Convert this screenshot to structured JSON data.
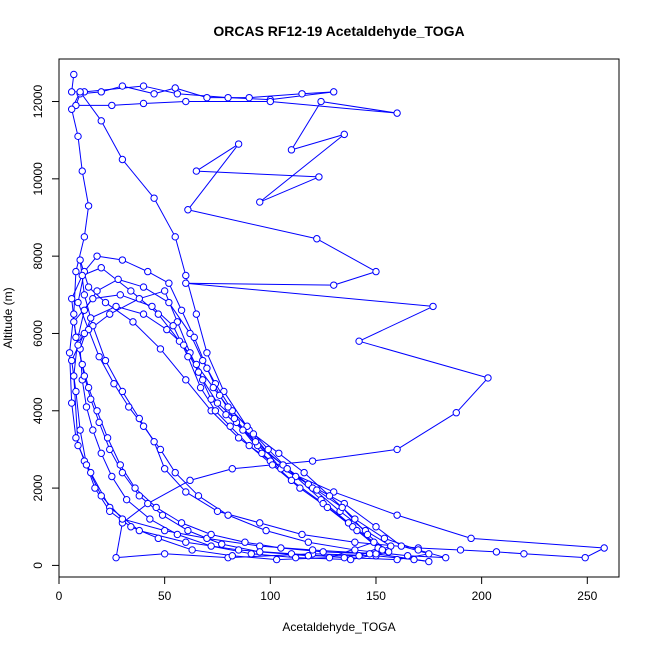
{
  "chart_data": {
    "type": "line",
    "title": "ORCAS RF12-19 Acetaldehyde_TOGA",
    "xlabel": "Acetaldehyde_TOGA",
    "ylabel": "Altitude (m)",
    "xlim": [
      0,
      265
    ],
    "ylim": [
      -300,
      13100
    ],
    "x_ticks": [
      0,
      50,
      100,
      150,
      200,
      250
    ],
    "y_ticks": [
      0,
      2000,
      4000,
      6000,
      8000,
      10000,
      12000
    ],
    "x_tick_labels": [
      "0",
      "50",
      "100",
      "150",
      "200",
      "250"
    ],
    "y_tick_labels": [
      "0",
      "2000",
      "4000",
      "6000",
      "8000",
      "10000",
      "12000"
    ],
    "grid": false,
    "legend": "none",
    "series": [
      {
        "color": "#0000ff",
        "marker": "open-circle",
        "points": [
          [
            7,
            12700
          ],
          [
            6,
            12250
          ],
          [
            12,
            12250
          ],
          [
            40,
            12400
          ],
          [
            56,
            12200
          ],
          [
            80,
            12100
          ],
          [
            100,
            12050
          ],
          [
            130,
            12250
          ],
          [
            115,
            12200
          ],
          [
            90,
            12100
          ],
          [
            70,
            12100
          ],
          [
            55,
            12350
          ],
          [
            45,
            12200
          ],
          [
            30,
            12400
          ],
          [
            20,
            12250
          ],
          [
            10,
            12200
          ],
          [
            8,
            11900
          ],
          [
            25,
            11900
          ],
          [
            40,
            11950
          ],
          [
            60,
            12000
          ],
          [
            100,
            12000
          ],
          [
            160,
            11700
          ],
          [
            124,
            12000
          ],
          [
            110,
            10750
          ],
          [
            135,
            11150
          ],
          [
            95,
            9400
          ],
          [
            123,
            10050
          ],
          [
            65,
            10200
          ],
          [
            85,
            10900
          ],
          [
            61,
            9200
          ],
          [
            122,
            8450
          ],
          [
            150,
            7600
          ],
          [
            130,
            7250
          ],
          [
            60,
            7300
          ],
          [
            177,
            6700
          ],
          [
            142,
            5800
          ],
          [
            203,
            4850
          ],
          [
            188,
            3950
          ],
          [
            160,
            3000
          ],
          [
            120,
            2700
          ],
          [
            82,
            2500
          ],
          [
            62,
            2200
          ],
          [
            42,
            1600
          ],
          [
            30,
            1100
          ],
          [
            27,
            200
          ],
          [
            50,
            300
          ],
          [
            80,
            200
          ],
          [
            120,
            300
          ],
          [
            150,
            250
          ],
          [
            168,
            150
          ],
          [
            175,
            100
          ],
          [
            150,
            300
          ],
          [
            120,
            400
          ],
          [
            95,
            500
          ],
          [
            70,
            700
          ],
          [
            50,
            900
          ],
          [
            30,
            1200
          ],
          [
            20,
            1800
          ],
          [
            12,
            2700
          ],
          [
            8,
            3300
          ],
          [
            6,
            4200
          ],
          [
            5,
            5500
          ],
          [
            7,
            6500
          ],
          [
            8,
            7600
          ],
          [
            12,
            8500
          ],
          [
            14,
            9300
          ],
          [
            11,
            10200
          ],
          [
            9,
            11100
          ],
          [
            6,
            11800
          ],
          [
            10,
            12250
          ],
          [
            20,
            11500
          ],
          [
            30,
            10500
          ],
          [
            45,
            9500
          ],
          [
            55,
            8500
          ],
          [
            60,
            7500
          ],
          [
            65,
            6500
          ],
          [
            70,
            5500
          ],
          [
            78,
            4500
          ],
          [
            90,
            3500
          ],
          [
            105,
            2500
          ],
          [
            130,
            1900
          ],
          [
            160,
            1300
          ],
          [
            195,
            700
          ],
          [
            258,
            450
          ],
          [
            249,
            200
          ],
          [
            220,
            300
          ],
          [
            207,
            350
          ],
          [
            190,
            400
          ],
          [
            170,
            450
          ],
          [
            140,
            600
          ],
          [
            115,
            800
          ],
          [
            95,
            1100
          ],
          [
            75,
            1400
          ],
          [
            60,
            1900
          ],
          [
            50,
            2500
          ],
          [
            45,
            3200
          ],
          [
            38,
            3800
          ],
          [
            30,
            4500
          ],
          [
            22,
            5300
          ],
          [
            16,
            6200
          ],
          [
            12,
            7000
          ],
          [
            10,
            7900
          ],
          [
            14,
            7200
          ],
          [
            22,
            6800
          ],
          [
            35,
            6300
          ],
          [
            48,
            5600
          ],
          [
            60,
            4800
          ],
          [
            72,
            4000
          ],
          [
            85,
            3300
          ],
          [
            100,
            2700
          ],
          [
            118,
            2100
          ],
          [
            135,
            1600
          ],
          [
            150,
            1000
          ],
          [
            162,
            500
          ],
          [
            175,
            300
          ],
          [
            160,
            150
          ],
          [
            135,
            200
          ],
          [
            110,
            300
          ],
          [
            85,
            400
          ],
          [
            60,
            600
          ],
          [
            38,
            900
          ],
          [
            24,
            1500
          ],
          [
            15,
            2400
          ],
          [
            9,
            3100
          ],
          [
            7,
            4900
          ],
          [
            9,
            5900
          ],
          [
            12,
            6600
          ],
          [
            18,
            7100
          ],
          [
            28,
            7400
          ],
          [
            40,
            7200
          ],
          [
            52,
            6800
          ],
          [
            62,
            6000
          ],
          [
            68,
            5300
          ],
          [
            74,
            4700
          ],
          [
            82,
            4000
          ],
          [
            92,
            3400
          ],
          [
            104,
            2900
          ],
          [
            116,
            2400
          ],
          [
            128,
            1800
          ],
          [
            140,
            1200
          ],
          [
            154,
            700
          ],
          [
            170,
            400
          ],
          [
            183,
            200
          ],
          [
            165,
            250
          ],
          [
            140,
            400
          ],
          [
            118,
            600
          ],
          [
            98,
            900
          ],
          [
            80,
            1300
          ],
          [
            66,
            1800
          ],
          [
            55,
            2400
          ],
          [
            48,
            3000
          ],
          [
            40,
            3600
          ],
          [
            33,
            4100
          ],
          [
            26,
            4700
          ],
          [
            19,
            5400
          ],
          [
            14,
            6100
          ],
          [
            9,
            6800
          ],
          [
            12,
            7600
          ],
          [
            18,
            8000
          ],
          [
            30,
            7900
          ],
          [
            42,
            7600
          ],
          [
            52,
            7300
          ],
          [
            58,
            6600
          ],
          [
            64,
            5900
          ],
          [
            70,
            5100
          ],
          [
            76,
            4400
          ],
          [
            84,
            3700
          ],
          [
            94,
            3100
          ],
          [
            106,
            2600
          ],
          [
            120,
            2000
          ],
          [
            133,
            1400
          ],
          [
            145,
            900
          ],
          [
            157,
            500
          ],
          [
            147,
            300
          ],
          [
            125,
            350
          ],
          [
            105,
            450
          ],
          [
            88,
            600
          ],
          [
            72,
            800
          ],
          [
            58,
            1100
          ],
          [
            46,
            1500
          ],
          [
            36,
            2000
          ],
          [
            29,
            2600
          ],
          [
            23,
            3300
          ],
          [
            18,
            4000
          ],
          [
            14,
            4600
          ],
          [
            11,
            5200
          ],
          [
            8,
            5900
          ],
          [
            6,
            6900
          ],
          [
            11,
            7500
          ],
          [
            20,
            7700
          ],
          [
            34,
            7100
          ],
          [
            47,
            6500
          ],
          [
            57,
            5800
          ],
          [
            65,
            5200
          ],
          [
            73,
            4600
          ],
          [
            80,
            4100
          ],
          [
            89,
            3600
          ],
          [
            99,
            3000
          ],
          [
            112,
            2300
          ],
          [
            124,
            1700
          ],
          [
            137,
            1100
          ],
          [
            149,
            600
          ],
          [
            128,
            200
          ],
          [
            103,
            150
          ],
          [
            82,
            250
          ],
          [
            63,
            400
          ],
          [
            47,
            700
          ],
          [
            34,
            1000
          ],
          [
            24,
            1400
          ],
          [
            17,
            2000
          ],
          [
            13,
            2600
          ],
          [
            10,
            3500
          ],
          [
            8,
            4500
          ],
          [
            6,
            5300
          ],
          [
            12,
            6000
          ],
          [
            24,
            6500
          ],
          [
            38,
            6900
          ],
          [
            50,
            7100
          ],
          [
            56,
            6300
          ],
          [
            62,
            5500
          ],
          [
            68,
            4800
          ],
          [
            75,
            4200
          ],
          [
            83,
            3800
          ],
          [
            93,
            3200
          ],
          [
            108,
            2500
          ],
          [
            122,
            1950
          ],
          [
            134,
            1500
          ],
          [
            146,
            800
          ],
          [
            156,
            350
          ],
          [
            138,
            150
          ],
          [
            112,
            200
          ],
          [
            91,
            300
          ],
          [
            72,
            500
          ],
          [
            56,
            800
          ],
          [
            43,
            1200
          ],
          [
            32,
            1700
          ],
          [
            25,
            2300
          ],
          [
            20,
            2900
          ],
          [
            16,
            3500
          ],
          [
            13,
            4100
          ],
          [
            11,
            4800
          ],
          [
            10,
            5600
          ],
          [
            15,
            6400
          ],
          [
            27,
            6700
          ],
          [
            40,
            6500
          ],
          [
            51,
            6100
          ],
          [
            59,
            5700
          ],
          [
            66,
            5000
          ],
          [
            72,
            4300
          ],
          [
            79,
            3900
          ],
          [
            87,
            3500
          ],
          [
            96,
            2900
          ],
          [
            110,
            2200
          ],
          [
            125,
            1600
          ],
          [
            139,
            1000
          ],
          [
            151,
            450
          ],
          [
            142,
            250
          ],
          [
            118,
            250
          ],
          [
            95,
            350
          ],
          [
            77,
            550
          ],
          [
            61,
            900
          ],
          [
            49,
            1300
          ],
          [
            38,
            1800
          ],
          [
            30,
            2400
          ],
          [
            24,
            3000
          ],
          [
            19,
            3700
          ],
          [
            15,
            4300
          ],
          [
            12,
            4900
          ],
          [
            9,
            5700
          ],
          [
            7,
            6300
          ],
          [
            16,
            6900
          ],
          [
            29,
            7000
          ],
          [
            44,
            6700
          ],
          [
            54,
            6200
          ],
          [
            61,
            5400
          ],
          [
            67,
            4600
          ],
          [
            74,
            4000
          ],
          [
            81,
            3600
          ],
          [
            90,
            3100
          ],
          [
            101,
            2600
          ],
          [
            114,
            2000
          ],
          [
            127,
            1500
          ],
          [
            141,
            900
          ],
          [
            153,
            400
          ]
        ]
      }
    ]
  }
}
